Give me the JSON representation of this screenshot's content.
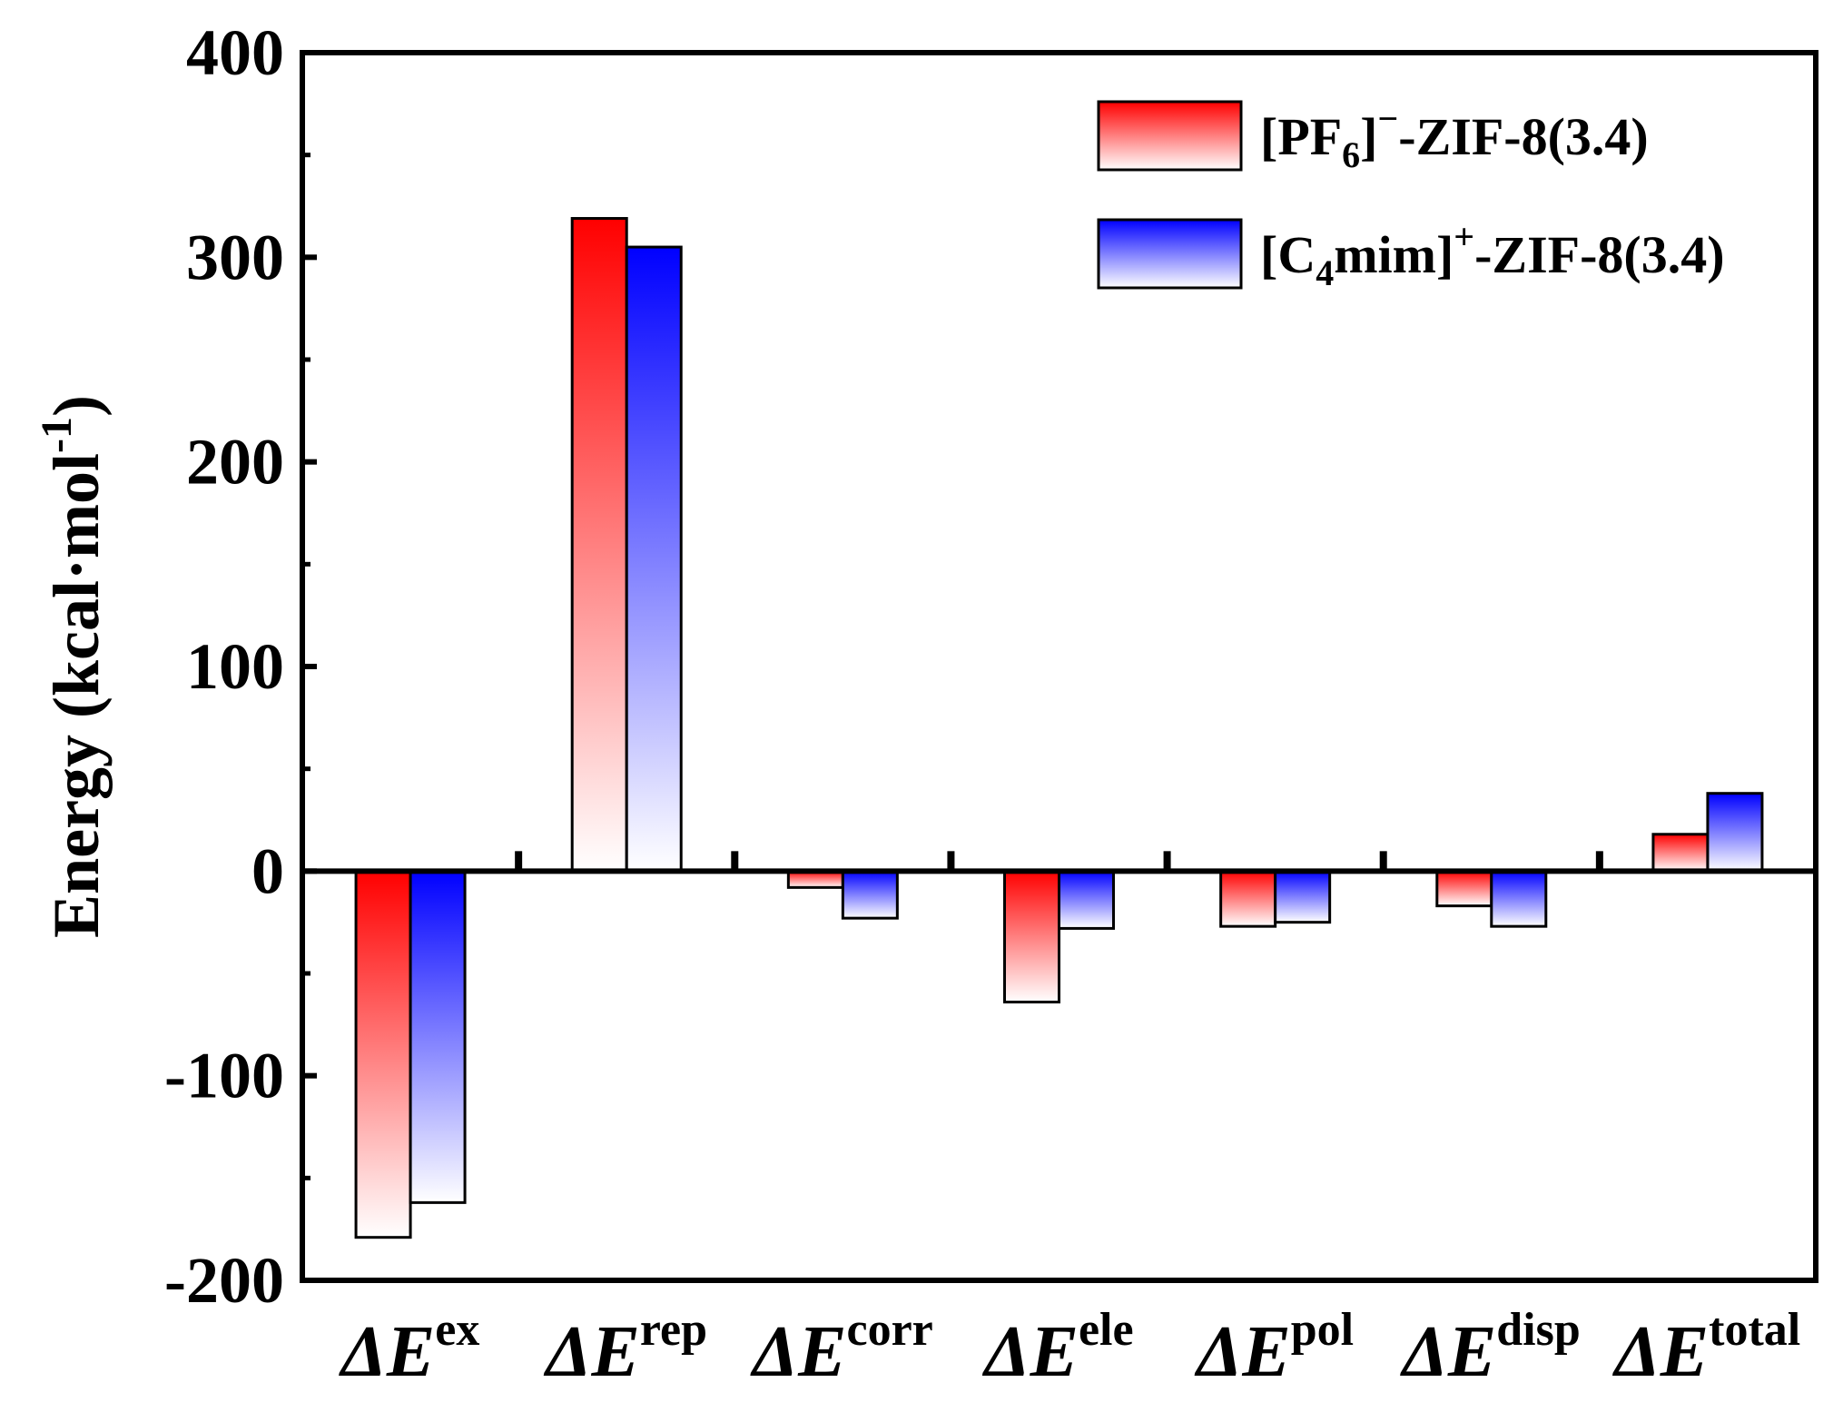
{
  "chart_data": {
    "type": "bar",
    "ylabel": "Energy (kcal·mol-1)",
    "ylabel_parts": {
      "main": "Energy (kcal·mol",
      "sup": "-1",
      "close": ")"
    },
    "ylim": [
      -200,
      400
    ],
    "yticks": [
      -200,
      -100,
      0,
      100,
      200,
      300,
      400
    ],
    "categories": [
      {
        "prefix": "ΔE",
        "sup": "ex"
      },
      {
        "prefix": "ΔE",
        "sup": "rep"
      },
      {
        "prefix": "ΔE",
        "sup": "corr"
      },
      {
        "prefix": "ΔE",
        "sup": "ele"
      },
      {
        "prefix": "ΔE",
        "sup": "pol"
      },
      {
        "prefix": "ΔE",
        "sup": "disp"
      },
      {
        "prefix": "ΔE",
        "sup": "total"
      }
    ],
    "series": [
      {
        "name": "[PF6]−-ZIF-8(3.4)",
        "name_parts": {
          "a": "[PF",
          "sub": "6",
          "b": "]",
          "sup": "−",
          "c": "-ZIF-8(3.4)"
        },
        "color": "#ff0000",
        "values": [
          -179,
          319,
          -8,
          -64,
          -27,
          -17,
          18
        ]
      },
      {
        "name": "[C4mim]+-ZIF-8(3.4)",
        "name_parts": {
          "a": "[C",
          "sub": "4",
          "b": "mim]",
          "sup": "+",
          "c": "-ZIF-8(3.4)"
        },
        "color": "#0000ff",
        "values": [
          -162,
          305,
          -23,
          -28,
          -25,
          -27,
          38
        ]
      }
    ],
    "legend_position": "top-right",
    "grid": false
  }
}
